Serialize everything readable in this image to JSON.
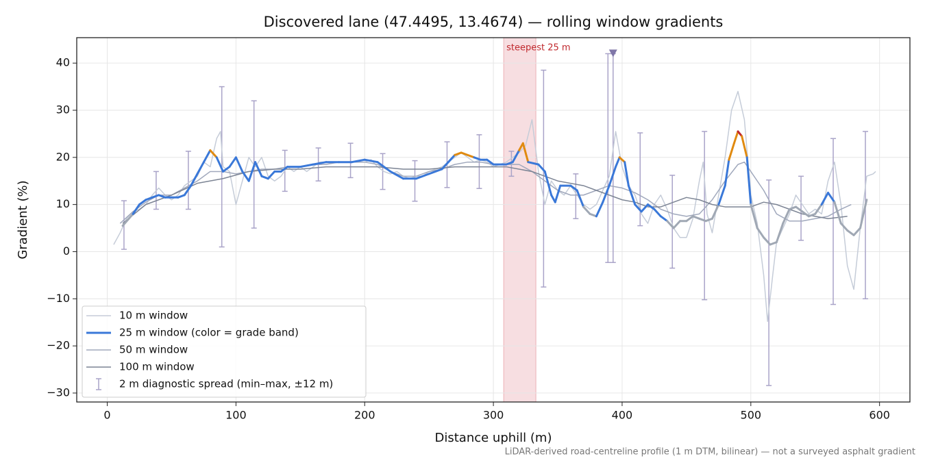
{
  "chart_data": {
    "type": "line",
    "title": "Discovered lane (47.4495, 13.4674) — rolling window gradients",
    "x_label": "Distance uphill (m)",
    "y_label": "Gradient (%)",
    "footnote": "LiDAR-derived road-centreline profile (1 m DTM, bilinear) — not a surveyed asphalt gradient",
    "xlim": [
      -23.7,
      623.6
    ],
    "ylim": [
      -31.9,
      45.4
    ],
    "xticks": [
      0,
      100,
      200,
      300,
      400,
      500,
      600
    ],
    "yticks": [
      {
        "value": -30,
        "label": "−30"
      },
      {
        "value": -20,
        "label": "−20"
      },
      {
        "value": -10,
        "label": "−10"
      },
      0,
      10,
      20,
      30,
      40
    ],
    "grid": true,
    "legend": "lower left",
    "series": [
      {
        "name": "10 m window",
        "color": "#c5ccd8",
        "width": 1.5,
        "x": [
          5,
          10,
          15,
          20,
          25,
          30,
          35,
          40,
          45,
          50,
          55,
          60,
          65,
          70,
          75,
          80,
          85,
          88,
          90,
          95,
          100,
          105,
          110,
          115,
          120,
          125,
          130,
          135,
          140,
          145,
          150,
          155,
          160,
          165,
          170,
          175,
          180,
          185,
          190,
          195,
          200,
          205,
          210,
          215,
          220,
          225,
          230,
          235,
          240,
          245,
          250,
          255,
          260,
          265,
          270,
          275,
          280,
          285,
          290,
          295,
          300,
          305,
          310,
          315,
          320,
          325,
          330,
          335,
          340,
          345,
          350,
          355,
          360,
          365,
          370,
          375,
          380,
          385,
          390,
          395,
          400,
          405,
          410,
          415,
          420,
          425,
          430,
          435,
          440,
          445,
          450,
          455,
          460,
          463,
          466,
          470,
          475,
          480,
          485,
          490,
          495,
          500,
          505,
          510,
          513,
          517,
          520,
          525,
          530,
          535,
          540,
          545,
          550,
          555,
          560,
          565,
          570,
          575,
          580,
          585,
          590,
          595,
          597
        ],
        "values": [
          1.5,
          4,
          7,
          8.5,
          9,
          10,
          12,
          13.5,
          12,
          11,
          12,
          14,
          15,
          16,
          19,
          18,
          24,
          25.5,
          18,
          17,
          10,
          15,
          20,
          18,
          20,
          16,
          15,
          16,
          18,
          17,
          18,
          17,
          18,
          19,
          19,
          19,
          19,
          19,
          19,
          19,
          19,
          19.5,
          18,
          17,
          16.5,
          17,
          16,
          15.5,
          16,
          16,
          17,
          17.5,
          18,
          19,
          20,
          21,
          20,
          19,
          19.5,
          19,
          18,
          18.5,
          19,
          20,
          21,
          22.5,
          28,
          17,
          10,
          15,
          13,
          12,
          14,
          12,
          10,
          9,
          10,
          13,
          16,
          25.5,
          18,
          14,
          12,
          8,
          6,
          10,
          12,
          9,
          5,
          3,
          3,
          7,
          15,
          19,
          8,
          4,
          12,
          20,
          30,
          34,
          28,
          12,
          6,
          -5,
          -14.8,
          -5,
          2,
          5,
          8,
          12,
          10,
          8,
          9,
          8,
          15,
          19,
          10,
          -3,
          -8,
          5,
          16,
          16.5,
          17
        ]
      },
      {
        "name": "25 m window (color = grade band)",
        "color": "#3a78d8",
        "width": 3,
        "x": [
          12,
          20,
          25,
          30,
          35,
          40,
          45,
          50,
          55,
          60,
          65,
          70,
          75,
          80,
          85,
          90,
          95,
          100,
          105,
          110,
          115,
          120,
          125,
          130,
          135,
          140,
          150,
          160,
          170,
          180,
          190,
          200,
          210,
          220,
          230,
          240,
          250,
          260,
          265,
          270,
          275,
          280,
          285,
          290,
          295,
          300,
          310,
          315,
          320,
          323,
          327,
          335,
          340,
          345,
          348,
          352,
          360,
          365,
          370,
          375,
          380,
          385,
          390,
          395,
          398,
          402,
          405,
          410,
          415,
          420,
          425,
          430,
          435,
          440,
          445,
          450,
          455,
          460,
          465,
          470,
          475,
          480,
          483,
          487,
          490,
          493,
          497,
          500,
          505,
          510,
          515,
          520,
          525,
          530,
          535,
          540,
          545,
          550,
          555,
          560,
          565,
          570,
          575,
          580,
          585,
          590
        ],
        "values": [
          5.5,
          8,
          10,
          11,
          11.5,
          12,
          11.5,
          11.5,
          11.5,
          12,
          14,
          16.5,
          19,
          21.5,
          20,
          17,
          18,
          20,
          17,
          15,
          19,
          16,
          15.5,
          17,
          17,
          18,
          18,
          18.5,
          19,
          19,
          19,
          19.5,
          19,
          17,
          15.5,
          15.5,
          16.5,
          17.5,
          19,
          20.5,
          21,
          20.5,
          20,
          19.5,
          19.5,
          18.5,
          18.5,
          19,
          21.5,
          23,
          19,
          18.5,
          17,
          12,
          10.5,
          14,
          14,
          13,
          9.5,
          8,
          7.5,
          10.5,
          14,
          18,
          20,
          19,
          14,
          10,
          8.5,
          10,
          9,
          7.5,
          6.5,
          5,
          6.5,
          6.5,
          7.5,
          7,
          6.5,
          7,
          10,
          14,
          19.5,
          23,
          25.5,
          24.5,
          20,
          10,
          5,
          3,
          1.5,
          2,
          6,
          9,
          9.5,
          8.5,
          7.5,
          8,
          10,
          12.5,
          10.5,
          6,
          4.5,
          3.5,
          5,
          11
        ],
        "colors": [
          "#a0a8b4",
          "#3a78d8",
          "#3a78d8",
          "#3a78d8",
          "#3a78d8",
          "#3a78d8",
          "#3a78d8",
          "#3a78d8",
          "#3a78d8",
          "#3a78d8",
          "#3a78d8",
          "#3a78d8",
          "#3a78d8",
          "#e08a10",
          "#3a78d8",
          "#3a78d8",
          "#3a78d8",
          "#3a78d8",
          "#3a78d8",
          "#3a78d8",
          "#3a78d8",
          "#3a78d8",
          "#3a78d8",
          "#3a78d8",
          "#3a78d8",
          "#3a78d8",
          "#3a78d8",
          "#3a78d8",
          "#3a78d8",
          "#3a78d8",
          "#3a78d8",
          "#3a78d8",
          "#3a78d8",
          "#3a78d8",
          "#3a78d8",
          "#3a78d8",
          "#3a78d8",
          "#3a78d8",
          "#3a78d8",
          "#e08a10",
          "#e08a10",
          "#e08a10",
          "#3a78d8",
          "#3a78d8",
          "#3a78d8",
          "#3a78d8",
          "#3a78d8",
          "#3a78d8",
          "#e08a10",
          "#e08a10",
          "#3a78d8",
          "#3a78d8",
          "#3a78d8",
          "#3a78d8",
          "#3a78d8",
          "#3a78d8",
          "#3a78d8",
          "#3a78d8",
          "#a0a8b4",
          "#a0a8b4",
          "#3a78d8",
          "#3a78d8",
          "#3a78d8",
          "#3a78d8",
          "#e08a10",
          "#3a78d8",
          "#3a78d8",
          "#3a78d8",
          "#3a78d8",
          "#3a78d8",
          "#3a78d8",
          "#3a78d8",
          "#a0a8b4",
          "#a0a8b4",
          "#a0a8b4",
          "#a0a8b4",
          "#a0a8b4",
          "#a0a8b4",
          "#a0a8b4",
          "#a0a8b4",
          "#3a78d8",
          "#3a78d8",
          "#e08a10",
          "#e08a10",
          "#c0282d",
          "#e08a10",
          "#3a78d8",
          "#a0a8b4",
          "#a0a8b4",
          "#a0a8b4",
          "#a0a8b4",
          "#a0a8b4",
          "#a0a8b4",
          "#a0a8b4",
          "#a0a8b4",
          "#a0a8b4",
          "#a0a8b4",
          "#a0a8b4",
          "#3a78d8",
          "#3a78d8",
          "#a0a8b4",
          "#a0a8b4",
          "#a0a8b4",
          "#a0a8b4",
          "#a0a8b4",
          "#3a78d8"
        ]
      },
      {
        "name": "50 m window",
        "color": "#a0a8bc",
        "width": 1.5,
        "x": [
          10,
          20,
          30,
          40,
          50,
          60,
          70,
          80,
          90,
          100,
          110,
          120,
          130,
          140,
          150,
          160,
          170,
          180,
          190,
          200,
          210,
          220,
          230,
          240,
          250,
          260,
          270,
          280,
          290,
          300,
          310,
          320,
          330,
          340,
          350,
          360,
          370,
          380,
          390,
          400,
          410,
          420,
          430,
          440,
          450,
          460,
          470,
          480,
          490,
          495,
          500,
          510,
          520,
          530,
          540,
          550,
          560,
          570,
          578
        ],
        "values": [
          6,
          8.5,
          10.5,
          12,
          12,
          13.5,
          15,
          17,
          17,
          16.5,
          17,
          17.5,
          17.5,
          18,
          18,
          18.5,
          18.5,
          19,
          19,
          19,
          18.5,
          17,
          16,
          16,
          17,
          17.5,
          18.5,
          19,
          19,
          18.5,
          18.5,
          18.5,
          17,
          15,
          13,
          12,
          12,
          13,
          14,
          13.5,
          12.5,
          11,
          9,
          8,
          7.5,
          8,
          11,
          15,
          18.5,
          19,
          17,
          13,
          8,
          6.5,
          6.5,
          7,
          7.5,
          9,
          10
        ]
      },
      {
        "name": "100 m window",
        "color": "#7c8494",
        "width": 1.5,
        "x": [
          12,
          30,
          50,
          70,
          90,
          110,
          130,
          150,
          170,
          190,
          210,
          230,
          250,
          270,
          290,
          310,
          330,
          350,
          370,
          380,
          390,
          400,
          410,
          420,
          430,
          440,
          450,
          460,
          470,
          480,
          490,
          500,
          510,
          520,
          530,
          540,
          550,
          560,
          575
        ],
        "values": [
          6,
          10,
          12,
          14.5,
          15.5,
          17,
          17.5,
          17.5,
          18,
          18,
          18,
          17.5,
          17.5,
          18,
          18,
          18,
          17,
          15,
          14,
          13,
          12,
          11,
          10.5,
          9.5,
          9.5,
          10.5,
          11.5,
          11,
          10,
          9.5,
          9.5,
          9.5,
          10.5,
          10,
          9,
          8,
          7.5,
          7,
          7.5
        ]
      }
    ],
    "error_bars": {
      "name": "2 m diagnostic spread (min–max, ±12 m)",
      "color": "#a9a3c8",
      "x": [
        13,
        38,
        63,
        89,
        114,
        138,
        164,
        189,
        214,
        239,
        264,
        289,
        314,
        339,
        364,
        389,
        393,
        414,
        439,
        464,
        514,
        539,
        564,
        589
      ],
      "low": [
        0.5,
        9,
        9,
        1,
        5,
        12.8,
        15,
        15.7,
        13.2,
        10.7,
        13.6,
        13.4,
        16,
        -7.5,
        7,
        -2.3,
        -2.3,
        5.5,
        -3.5,
        -10.2,
        -28.4,
        2.4,
        -11.2,
        -10
      ],
      "high": [
        10.8,
        17,
        21.3,
        35,
        32,
        21.5,
        22,
        23,
        20.8,
        19.3,
        23.3,
        24.8,
        21.3,
        38.5,
        16.5,
        42,
        42,
        25.2,
        16.2,
        25.5,
        15.2,
        16,
        24,
        25.5
      ]
    },
    "highlight": {
      "x0": 308,
      "x1": 333,
      "label": "steepest 25 m",
      "color": "#e8a0a8",
      "label_color": "#c0282d"
    },
    "marker": {
      "x": 393,
      "y": 42,
      "color": "#7f76a8"
    }
  }
}
